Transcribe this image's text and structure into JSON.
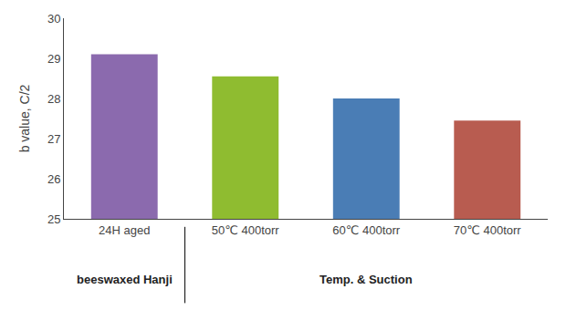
{
  "chart_data": {
    "type": "bar",
    "categories": [
      "24H aged",
      "50℃ 400torr",
      "60℃ 400torr",
      "70℃ 400torr"
    ],
    "values": [
      29.1,
      28.55,
      28.0,
      27.45
    ],
    "colors": [
      "#8B6AAE",
      "#8FBC30",
      "#4A7DB5",
      "#B85C50"
    ],
    "ylabel": "b value, C/2",
    "ylim": [
      25,
      30
    ],
    "yticks": [
      25,
      26,
      27,
      28,
      29,
      30
    ],
    "grid": false,
    "annotations": [
      {
        "text": "beeswaxed Hanji",
        "categories": [
          "24H aged"
        ]
      },
      {
        "text": "Temp. & Suction",
        "categories": [
          "50℃ 400torr",
          "60℃ 400torr",
          "70℃ 400torr"
        ]
      }
    ]
  }
}
